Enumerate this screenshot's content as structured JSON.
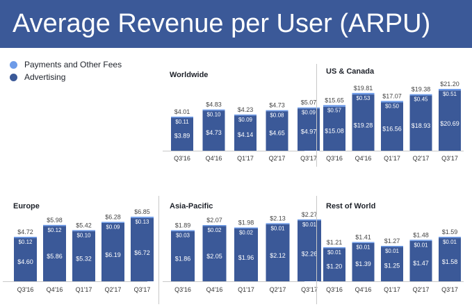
{
  "title": "Average Revenue per User (ARPU)",
  "colors": {
    "header": "#3b5998",
    "advertising": "#3b5998",
    "payments": "#6d9be8",
    "total_text": "#444444"
  },
  "legend": [
    {
      "label": "Payments and Other Fees",
      "color": "#6d9be8"
    },
    {
      "label": "Advertising",
      "color": "#3b5998"
    }
  ],
  "chart_data": [
    {
      "type": "bar",
      "title": "Worldwide",
      "stacked": true,
      "categories": [
        "Q3'16",
        "Q4'16",
        "Q1'17",
        "Q2'17",
        "Q3'17"
      ],
      "series": [
        {
          "name": "Advertising",
          "values": [
            3.89,
            4.73,
            4.14,
            4.65,
            4.97
          ],
          "labels": [
            "$3.89",
            "$4.73",
            "$4.14",
            "$4.65",
            "$4.97"
          ]
        },
        {
          "name": "Payments and Other Fees",
          "values": [
            0.11,
            0.1,
            0.09,
            0.08,
            0.09
          ],
          "labels": [
            "$0.11",
            "$0.10",
            "$0.09",
            "$0.08",
            "$0.09"
          ]
        }
      ],
      "totals": [
        "$4.01",
        "$4.83",
        "$4.23",
        "$4.73",
        "$5.07"
      ]
    },
    {
      "type": "bar",
      "title": "US & Canada",
      "stacked": true,
      "categories": [
        "Q3'16",
        "Q4'16",
        "Q1'17",
        "Q2'17",
        "Q3'17"
      ],
      "series": [
        {
          "name": "Advertising",
          "values": [
            15.08,
            19.28,
            16.56,
            18.93,
            20.69
          ],
          "labels": [
            "$15.08",
            "$19.28",
            "$16.56",
            "$18.93",
            "$20.69"
          ]
        },
        {
          "name": "Payments and Other Fees",
          "values": [
            0.57,
            0.53,
            0.5,
            0.45,
            0.51
          ],
          "labels": [
            "$0.57",
            "$0.53",
            "$0.50",
            "$0.45",
            "$0.51"
          ]
        }
      ],
      "totals": [
        "$15.65",
        "$19.81",
        "$17.07",
        "$19.38",
        "$21.20"
      ]
    },
    {
      "type": "bar",
      "title": "Europe",
      "stacked": true,
      "categories": [
        "Q3'16",
        "Q4'16",
        "Q1'17",
        "Q2'17",
        "Q3'17"
      ],
      "series": [
        {
          "name": "Advertising",
          "values": [
            4.6,
            5.86,
            5.32,
            6.19,
            6.72
          ],
          "labels": [
            "$4.60",
            "$5.86",
            "$5.32",
            "$6.19",
            "$6.72"
          ]
        },
        {
          "name": "Payments and Other Fees",
          "values": [
            0.12,
            0.12,
            0.1,
            0.09,
            0.13
          ],
          "labels": [
            "$0.12",
            "$0.12",
            "$0.10",
            "$0.09",
            "$0.13"
          ]
        }
      ],
      "totals": [
        "$4.72",
        "$5.98",
        "$5.42",
        "$6.28",
        "$6.85"
      ]
    },
    {
      "type": "bar",
      "title": "Asia-Pacific",
      "stacked": true,
      "categories": [
        "Q3'16",
        "Q4'16",
        "Q1'17",
        "Q2'17",
        "Q3'17"
      ],
      "series": [
        {
          "name": "Advertising",
          "values": [
            1.86,
            2.05,
            1.96,
            2.12,
            2.26
          ],
          "labels": [
            "$1.86",
            "$2.05",
            "$1.96",
            "$2.12",
            "$2.26"
          ]
        },
        {
          "name": "Payments and Other Fees",
          "values": [
            0.03,
            0.02,
            0.02,
            0.01,
            0.01
          ],
          "labels": [
            "$0.03",
            "$0.02",
            "$0.02",
            "$0.01",
            "$0.01"
          ]
        }
      ],
      "totals": [
        "$1.89",
        "$2.07",
        "$1.98",
        "$2.13",
        "$2.27"
      ]
    },
    {
      "type": "bar",
      "title": "Rest of World",
      "stacked": true,
      "categories": [
        "Q3'16",
        "Q4'16",
        "Q1'17",
        "Q2'17",
        "Q3'17"
      ],
      "series": [
        {
          "name": "Advertising",
          "values": [
            1.2,
            1.39,
            1.25,
            1.47,
            1.58
          ],
          "labels": [
            "$1.20",
            "$1.39",
            "$1.25",
            "$1.47",
            "$1.58"
          ]
        },
        {
          "name": "Payments and Other Fees",
          "values": [
            0.01,
            0.01,
            0.01,
            0.01,
            0.01
          ],
          "labels": [
            "$0.01",
            "$0.01",
            "$0.01",
            "$0.01",
            "$0.01"
          ]
        }
      ],
      "totals": [
        "$1.21",
        "$1.41",
        "$1.27",
        "$1.48",
        "$1.59"
      ]
    }
  ]
}
